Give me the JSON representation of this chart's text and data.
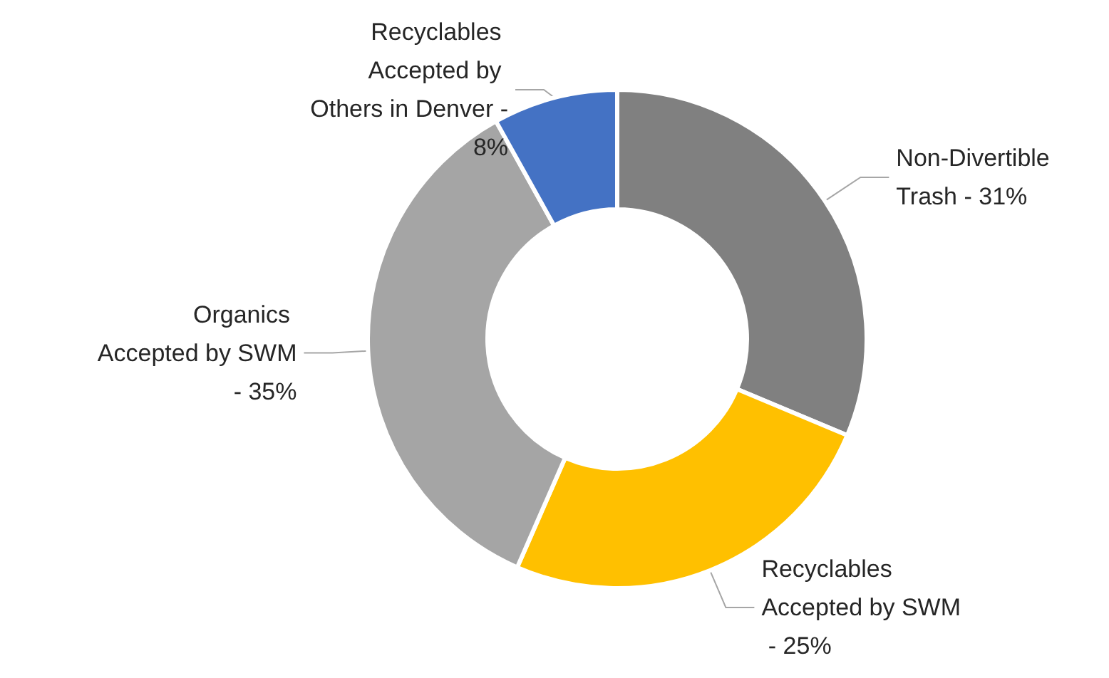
{
  "chart_data": {
    "type": "donut",
    "categories": [
      "Non-Divertible Trash - 31%",
      "Recyclables Accepted by SWM - 25%",
      "Organics Accepted by SWM - 35%",
      "Recyclables Accepted by Others in Denver - 8%"
    ],
    "values": [
      31,
      25,
      35,
      8
    ],
    "colors": [
      "#808080",
      "#ffc000",
      "#a5a5a5",
      "#4472c4"
    ],
    "legend": false
  }
}
